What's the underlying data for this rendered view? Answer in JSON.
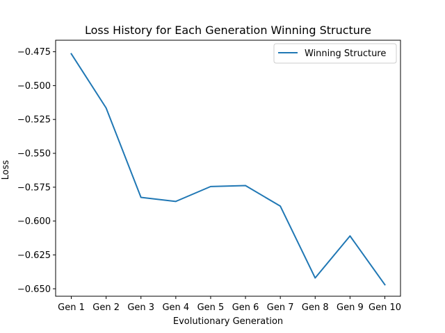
{
  "chart_data": {
    "type": "line",
    "title": "Loss History for Each Generation Winning Structure",
    "xlabel": "Evolutionary Generation",
    "ylabel": "Loss",
    "categories": [
      "Gen 1",
      "Gen 2",
      "Gen 3",
      "Gen 4",
      "Gen 5",
      "Gen 6",
      "Gen 7",
      "Gen 8",
      "Gen 9",
      "Gen 10"
    ],
    "ylim": [
      -0.6555,
      -0.4665
    ],
    "yticks": [
      -0.475,
      -0.5,
      -0.525,
      -0.55,
      -0.575,
      -0.6,
      -0.625,
      -0.65
    ],
    "ytick_labels": [
      "−0.475",
      "−0.500",
      "−0.525",
      "−0.550",
      "−0.575",
      "−0.600",
      "−0.625",
      "−0.650"
    ],
    "grid": false,
    "legend_position": "top-right",
    "series": [
      {
        "name": "Winning Structure",
        "color": "#1f77b4",
        "values": [
          -0.4765,
          -0.5165,
          -0.5825,
          -0.5855,
          -0.5745,
          -0.5738,
          -0.589,
          -0.642,
          -0.611,
          -0.647
        ]
      }
    ]
  }
}
